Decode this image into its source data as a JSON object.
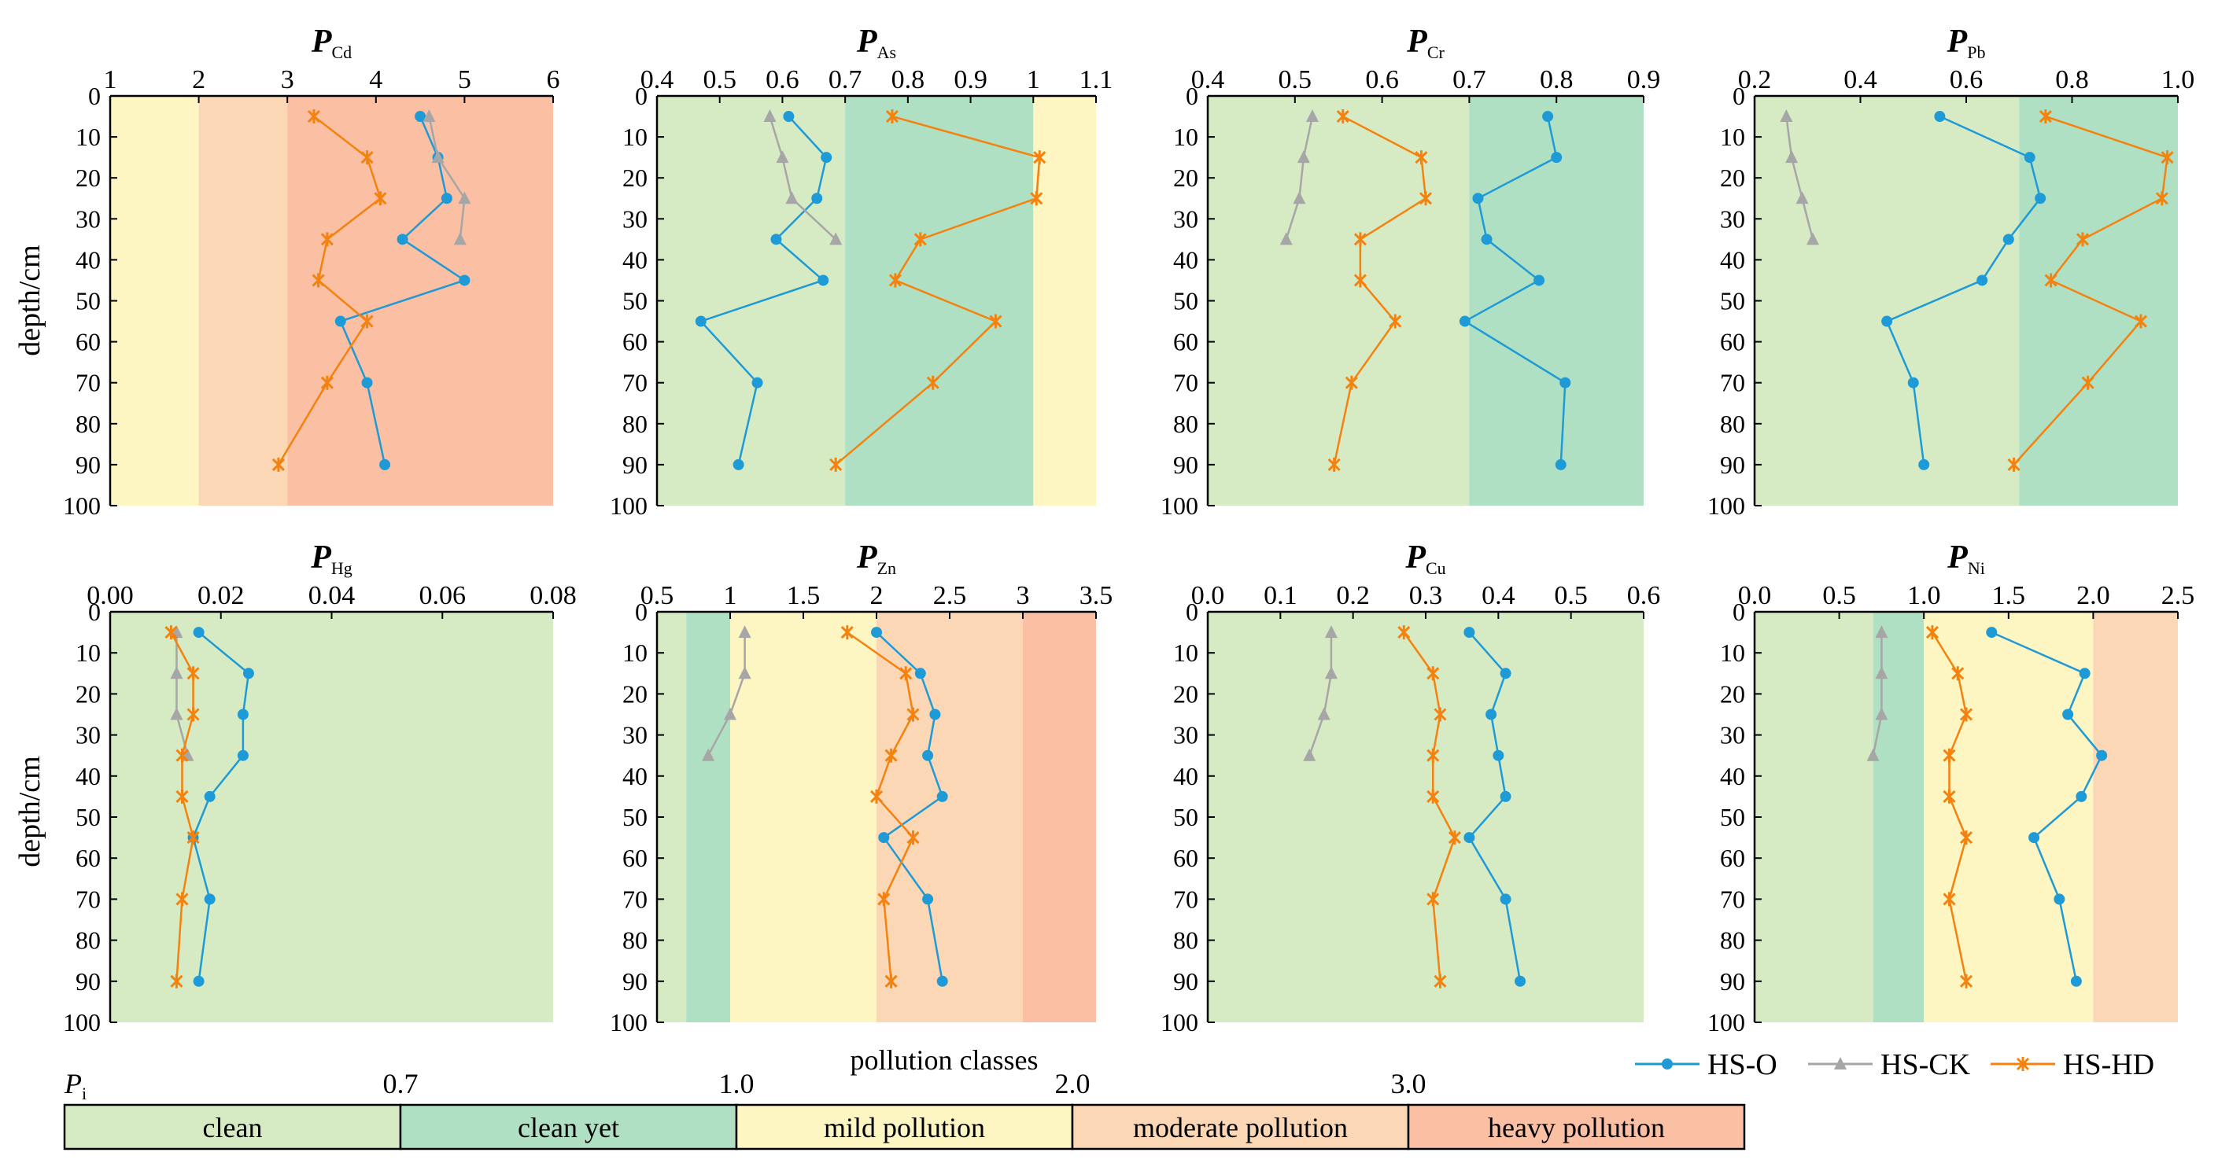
{
  "figure": {
    "ylabel": "depth/cm",
    "depths": [
      5,
      15,
      25,
      35,
      45,
      55,
      70,
      90
    ],
    "depth_ticks": [
      "0",
      "10",
      "20",
      "30",
      "40",
      "50",
      "60",
      "70",
      "80",
      "90",
      "100"
    ],
    "depth_range": [
      0,
      100
    ]
  },
  "colors": {
    "clean": "#d6ebc4",
    "clean_yet": "#b0e0c4",
    "mild": "#fdf5c2",
    "moderate": "#fcd7b5",
    "heavy": "#fbbfa4",
    "hs_o": "#1e9ad6",
    "hs_ck": "#a6a6a6",
    "hs_hd": "#f4820f"
  },
  "legend": {
    "series": [
      "HS-O",
      "HS-CK",
      "HS-HD"
    ],
    "scale_symbol": "P",
    "scale_sub": "i",
    "scale_title": "pollution classes",
    "thresholds": [
      "0.7",
      "1.0",
      "2.0",
      "3.0"
    ],
    "classes": [
      "clean",
      "clean yet",
      "mild pollution",
      "moderate pollution",
      "heavy pollution"
    ]
  },
  "chart_data": [
    {
      "type": "line",
      "symbol": "P",
      "subscript": "Cd",
      "xlim": [
        1,
        6
      ],
      "xticks": [
        "1",
        "2",
        "3",
        "4",
        "5",
        "6"
      ],
      "bands": [
        [
          1,
          2,
          "mild"
        ],
        [
          2,
          3,
          "moderate"
        ],
        [
          3,
          6,
          "heavy"
        ]
      ],
      "series": [
        {
          "name": "HS-O",
          "values": [
            4.5,
            4.7,
            4.8,
            4.3,
            5.0,
            3.6,
            3.9,
            4.1
          ]
        },
        {
          "name": "HS-CK",
          "values": [
            4.6,
            4.7,
            5.0,
            4.95
          ]
        },
        {
          "name": "HS-HD",
          "values": [
            3.3,
            3.9,
            4.05,
            3.45,
            3.35,
            3.9,
            3.45,
            2.9
          ]
        }
      ]
    },
    {
      "type": "line",
      "symbol": "P",
      "subscript": "As",
      "xlim": [
        0.4,
        1.1
      ],
      "xticks": [
        "0.4",
        "0.5",
        "0.6",
        "0.7",
        "0.8",
        "0.9",
        "1",
        "1.1"
      ],
      "bands": [
        [
          0.4,
          0.7,
          "clean"
        ],
        [
          0.7,
          1.0,
          "clean_yet"
        ],
        [
          1.0,
          1.1,
          "mild"
        ]
      ],
      "series": [
        {
          "name": "HS-O",
          "values": [
            0.61,
            0.67,
            0.655,
            0.59,
            0.665,
            0.47,
            0.56,
            0.53
          ]
        },
        {
          "name": "HS-CK",
          "values": [
            0.58,
            0.6,
            0.615,
            0.685
          ]
        },
        {
          "name": "HS-HD",
          "values": [
            0.775,
            1.01,
            1.005,
            0.82,
            0.78,
            0.94,
            0.84,
            0.685
          ]
        }
      ]
    },
    {
      "type": "line",
      "symbol": "P",
      "subscript": "Cr",
      "xlim": [
        0.4,
        0.9
      ],
      "xticks": [
        "0.4",
        "0.5",
        "0.6",
        "0.7",
        "0.8",
        "0.9"
      ],
      "bands": [
        [
          0.4,
          0.7,
          "clean"
        ],
        [
          0.7,
          0.9,
          "clean_yet"
        ]
      ],
      "series": [
        {
          "name": "HS-O",
          "values": [
            0.79,
            0.8,
            0.71,
            0.72,
            0.78,
            0.695,
            0.81,
            0.805
          ]
        },
        {
          "name": "HS-CK",
          "values": [
            0.52,
            0.51,
            0.505,
            0.49
          ]
        },
        {
          "name": "HS-HD",
          "values": [
            0.555,
            0.645,
            0.65,
            0.575,
            0.575,
            0.615,
            0.565,
            0.545
          ]
        }
      ]
    },
    {
      "type": "line",
      "symbol": "P",
      "subscript": "Pb",
      "xlim": [
        0.2,
        1.0
      ],
      "xticks": [
        "0.2",
        "0.4",
        "0.6",
        "0.8",
        "1.0"
      ],
      "bands": [
        [
          0.2,
          0.7,
          "clean"
        ],
        [
          0.7,
          1.0,
          "clean_yet"
        ]
      ],
      "series": [
        {
          "name": "HS-O",
          "values": [
            0.55,
            0.72,
            0.74,
            0.68,
            0.63,
            0.45,
            0.5,
            0.52
          ]
        },
        {
          "name": "HS-CK",
          "values": [
            0.26,
            0.27,
            0.29,
            0.31
          ]
        },
        {
          "name": "HS-HD",
          "values": [
            0.75,
            0.98,
            0.97,
            0.82,
            0.76,
            0.93,
            0.83,
            0.69
          ]
        }
      ]
    },
    {
      "type": "line",
      "symbol": "P",
      "subscript": "Hg",
      "xlim": [
        0,
        0.08
      ],
      "xticks": [
        "0.00",
        "0.02",
        "0.04",
        "0.06",
        "0.08"
      ],
      "bands": [
        [
          0,
          0.08,
          "clean"
        ]
      ],
      "series": [
        {
          "name": "HS-O",
          "values": [
            0.016,
            0.025,
            0.024,
            0.024,
            0.018,
            0.015,
            0.018,
            0.016
          ]
        },
        {
          "name": "HS-CK",
          "values": [
            0.012,
            0.012,
            0.012,
            0.014
          ]
        },
        {
          "name": "HS-HD",
          "values": [
            0.011,
            0.015,
            0.015,
            0.013,
            0.013,
            0.015,
            0.013,
            0.012
          ]
        }
      ]
    },
    {
      "type": "line",
      "symbol": "P",
      "subscript": "Zn",
      "xlim": [
        0.5,
        3.5
      ],
      "xticks": [
        "0.5",
        "1",
        "1.5",
        "2",
        "2.5",
        "3",
        "3.5"
      ],
      "bands": [
        [
          0.5,
          0.7,
          "clean"
        ],
        [
          0.7,
          1.0,
          "clean_yet"
        ],
        [
          1.0,
          2.0,
          "mild"
        ],
        [
          2.0,
          3.0,
          "moderate"
        ],
        [
          3.0,
          3.5,
          "heavy"
        ]
      ],
      "series": [
        {
          "name": "HS-O",
          "values": [
            2.0,
            2.3,
            2.4,
            2.35,
            2.45,
            2.05,
            2.35,
            2.45
          ]
        },
        {
          "name": "HS-CK",
          "values": [
            1.1,
            1.1,
            1.0,
            0.85
          ]
        },
        {
          "name": "HS-HD",
          "values": [
            1.8,
            2.2,
            2.25,
            2.1,
            2.0,
            2.25,
            2.05,
            2.1
          ]
        }
      ]
    },
    {
      "type": "line",
      "symbol": "P",
      "subscript": "Cu",
      "xlim": [
        0,
        0.6
      ],
      "xticks": [
        "0.0",
        "0.1",
        "0.2",
        "0.3",
        "0.4",
        "0.5",
        "0.6"
      ],
      "bands": [
        [
          0,
          0.6,
          "clean"
        ]
      ],
      "series": [
        {
          "name": "HS-O",
          "values": [
            0.36,
            0.41,
            0.39,
            0.4,
            0.41,
            0.36,
            0.41,
            0.43
          ]
        },
        {
          "name": "HS-CK",
          "values": [
            0.17,
            0.17,
            0.16,
            0.14
          ]
        },
        {
          "name": "HS-HD",
          "values": [
            0.27,
            0.31,
            0.32,
            0.31,
            0.31,
            0.34,
            0.31,
            0.32
          ]
        }
      ]
    },
    {
      "type": "line",
      "symbol": "P",
      "subscript": "Ni",
      "xlim": [
        0,
        2.5
      ],
      "xticks": [
        "0.0",
        "0.5",
        "1.0",
        "1.5",
        "2.0",
        "2.5"
      ],
      "bands": [
        [
          0,
          0.7,
          "clean"
        ],
        [
          0.7,
          1.0,
          "clean_yet"
        ],
        [
          1.0,
          2.0,
          "mild"
        ],
        [
          2.0,
          2.5,
          "moderate"
        ]
      ],
      "series": [
        {
          "name": "HS-O",
          "values": [
            1.4,
            1.95,
            1.85,
            2.05,
            1.93,
            1.65,
            1.8,
            1.9
          ]
        },
        {
          "name": "HS-CK",
          "values": [
            0.75,
            0.75,
            0.75,
            0.7
          ]
        },
        {
          "name": "HS-HD",
          "values": [
            1.05,
            1.2,
            1.25,
            1.15,
            1.15,
            1.25,
            1.15,
            1.25
          ]
        }
      ]
    }
  ]
}
